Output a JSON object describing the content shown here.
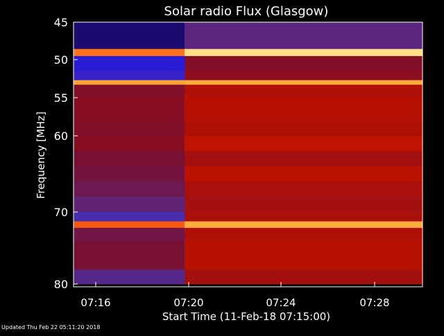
{
  "chart_data": {
    "type": "heatmap",
    "title": "Solar radio Flux (Glasgow)",
    "xlabel": "Start Time (11-Feb-18 07:15:00)",
    "ylabel": "Frequency [MHz]",
    "x_tick_labels": [
      "07:16",
      "07:20",
      "07:24",
      "07:28"
    ],
    "y_tick_labels": [
      "45",
      "50",
      "55",
      "60",
      "70",
      "80"
    ],
    "y_tick_values": [
      45,
      50,
      55,
      60,
      70,
      80
    ],
    "y_range": [
      45,
      80
    ],
    "x_range": [
      "07:15:00",
      "07:30:40"
    ],
    "time_rows": [
      "07:15-07:19",
      "07:20-07:30"
    ],
    "freq_bands": [
      [
        45,
        48.5
      ],
      [
        48.5,
        49.5
      ],
      [
        49.5,
        51.5
      ],
      [
        51.5,
        52.7
      ],
      [
        52.7,
        53.3
      ],
      [
        53.3,
        55
      ],
      [
        55,
        58
      ],
      [
        58,
        60
      ],
      [
        60,
        62
      ],
      [
        62,
        64
      ],
      [
        64,
        66
      ],
      [
        66,
        68
      ],
      [
        68,
        70
      ],
      [
        70,
        71.3
      ],
      [
        71.3,
        72.2
      ],
      [
        72.2,
        74
      ],
      [
        74,
        78
      ],
      [
        78,
        80
      ]
    ],
    "intensity": [
      [
        0.12,
        0.78,
        0.22,
        0.26,
        0.85,
        0.46,
        0.47,
        0.46,
        0.47,
        0.44,
        0.43,
        0.41,
        0.38,
        0.32,
        0.74,
        0.42,
        0.44,
        0.36
      ],
      [
        0.37,
        0.94,
        0.46,
        0.48,
        0.86,
        0.54,
        0.55,
        0.54,
        0.57,
        0.52,
        0.56,
        0.53,
        0.52,
        0.53,
        0.86,
        0.54,
        0.55,
        0.52
      ]
    ],
    "colorscale": [
      "#000000",
      "#1a0a66",
      "#2a1bd6",
      "#4c2fa6",
      "#7a0f2e",
      "#b81000",
      "#e22a00",
      "#ff6f1a",
      "#ffc14a",
      "#ffffd0"
    ]
  },
  "footer": {
    "updated": "Updated Thu Feb 22 05:11:20 2018"
  }
}
